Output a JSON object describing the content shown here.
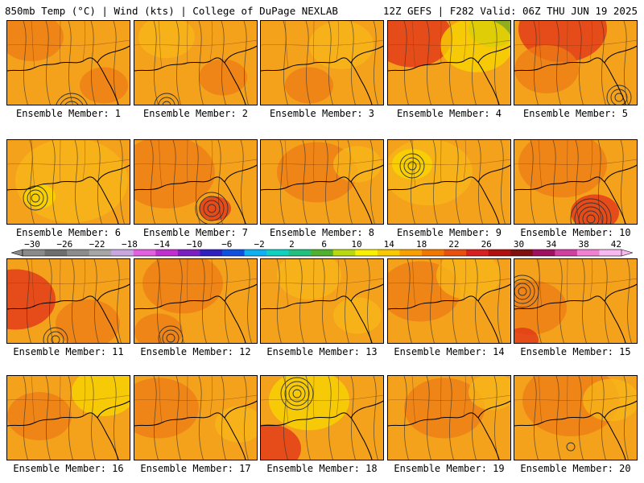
{
  "header": {
    "left": "850mb Temp (°C) | Wind (kts) | College of DuPage NEXLAB",
    "right": "12Z GEFS | F282 Valid: 06Z THU JUN 19 2025"
  },
  "panels": [
    {
      "label": "Ensemble Member: 1"
    },
    {
      "label": "Ensemble Member: 2"
    },
    {
      "label": "Ensemble Member: 3"
    },
    {
      "label": "Ensemble Member: 4"
    },
    {
      "label": "Ensemble Member: 5"
    },
    {
      "label": "Ensemble Member: 6"
    },
    {
      "label": "Ensemble Member: 7"
    },
    {
      "label": "Ensemble Member: 8"
    },
    {
      "label": "Ensemble Member: 9"
    },
    {
      "label": "Ensemble Member: 10"
    },
    {
      "label": "Ensemble Member: 11"
    },
    {
      "label": "Ensemble Member: 12"
    },
    {
      "label": "Ensemble Member: 13"
    },
    {
      "label": "Ensemble Member: 14"
    },
    {
      "label": "Ensemble Member: 15"
    },
    {
      "label": "Ensemble Member: 16"
    },
    {
      "label": "Ensemble Member: 17"
    },
    {
      "label": "Ensemble Member: 18"
    },
    {
      "label": "Ensemble Member: 19"
    },
    {
      "label": "Ensemble Member: 20"
    }
  ],
  "colorbar": {
    "labels": [
      "-30",
      "-26",
      "-22",
      "-18",
      "-14",
      "-10",
      "-6",
      "-2",
      "2",
      "6",
      "10",
      "14",
      "18",
      "22",
      "26",
      "30",
      "34",
      "38",
      "42"
    ],
    "colors": [
      "#8a8a8a",
      "#6e6e6e",
      "#8c8c8c",
      "#a6a6a6",
      "#c8a6e0",
      "#e060e0",
      "#c030d0",
      "#7a20c0",
      "#3020c0",
      "#1050e0",
      "#10b0f0",
      "#10d0c0",
      "#20c080",
      "#50b030",
      "#b8d810",
      "#f8f000",
      "#f8c800",
      "#f8a000",
      "#f07800",
      "#e85010",
      "#d82020",
      "#b01010",
      "#801010",
      "#a01060",
      "#d040a0",
      "#f080d0",
      "#f8b8f0"
    ]
  },
  "colors": {
    "base_orange": "#f4a11c",
    "light_orange": "#f8b81a",
    "yellow": "#f8d800",
    "dark_orange": "#ee7c14",
    "red": "#e03018",
    "green": "#70b020"
  }
}
